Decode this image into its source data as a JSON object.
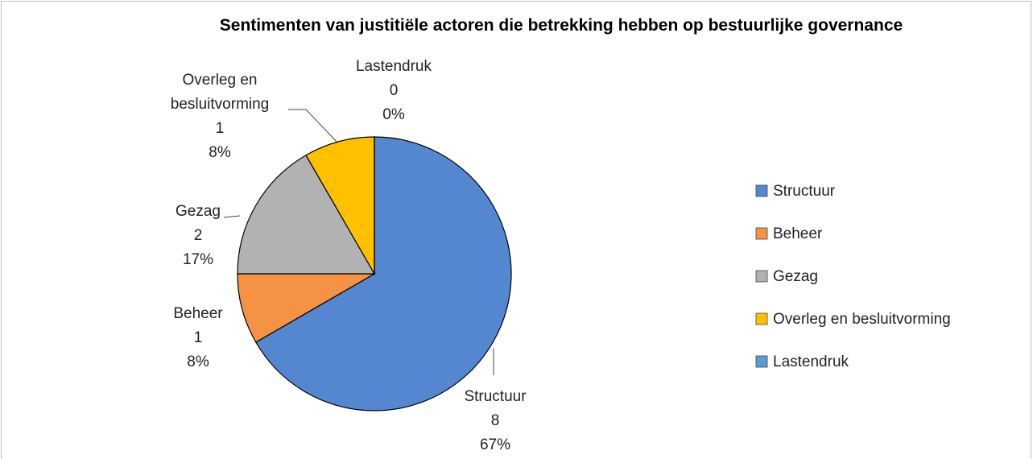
{
  "chart_data": {
    "type": "pie",
    "title": "Sentimenten van justitiële actoren die betrekking hebben op bestuurlijke governance",
    "categories": [
      "Structuur",
      "Beheer",
      "Gezag",
      "Overleg en besluitvorming",
      "Lastendruk"
    ],
    "values": [
      8,
      1,
      2,
      1,
      0
    ],
    "percentage_labels": [
      "67%",
      "8%",
      "17%",
      "8%",
      "0%"
    ],
    "colors": [
      "#5586d0",
      "#f59243",
      "#b2b2b2",
      "#ffc000",
      "#5b9bd5"
    ],
    "legend": "right"
  }
}
